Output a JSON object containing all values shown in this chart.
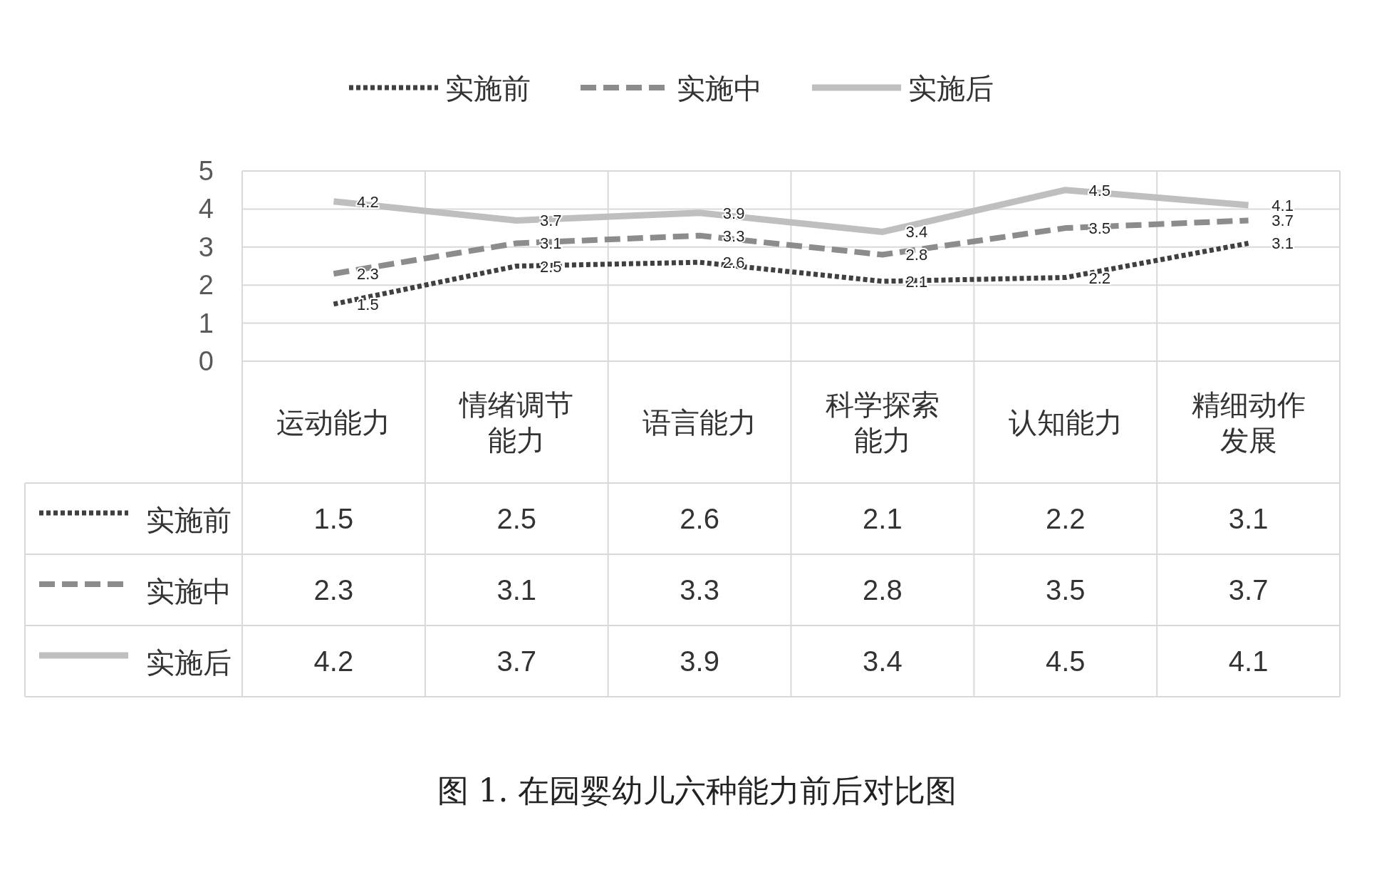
{
  "chart_data": {
    "type": "line",
    "title": "图 1. 在园婴幼儿六种能力前后对比图",
    "categories": [
      "运动能力",
      "情绪调节能力",
      "语言能力",
      "科学探索能力",
      "认知能力",
      "精细动作发展"
    ],
    "series": [
      {
        "name": "实施前",
        "color": "#404040",
        "line_style": "dotted",
        "values": [
          1.5,
          2.5,
          2.6,
          2.1,
          2.2,
          3.1
        ]
      },
      {
        "name": "实施中",
        "color": "#8c8c8c",
        "line_style": "dashed",
        "values": [
          2.3,
          3.1,
          3.3,
          2.8,
          3.5,
          3.7
        ]
      },
      {
        "name": "实施后",
        "color": "#bfbfbf",
        "line_style": "solid",
        "values": [
          4.2,
          3.7,
          3.9,
          3.4,
          4.5,
          4.1
        ]
      }
    ],
    "annotations": [
      {
        "text": "1.5",
        "x": "运动能力",
        "y": 1.5
      },
      {
        "text": "2.5",
        "x": "情绪调节能力",
        "y": 2.5
      },
      {
        "text": "2.6",
        "x": "语言能力",
        "y": 2.6
      },
      {
        "text": "2.1",
        "x": "科学探索能力",
        "y": 2.1
      },
      {
        "text": "2.2",
        "x": "认知能力",
        "y": 2.2
      },
      {
        "text": "3.1",
        "x": "精细动作发展",
        "y": 3.1
      },
      {
        "text": "2.3",
        "x": "运动能力",
        "y": 2.3
      },
      {
        "text": "3.1",
        "x": "情绪调节能力",
        "y": 3.1
      },
      {
        "text": "3.3",
        "x": "语言能力",
        "y": 3.3
      },
      {
        "text": "2.8",
        "x": "科学探索能力",
        "y": 2.8
      },
      {
        "text": "3.5",
        "x": "认知能力",
        "y": 3.5
      },
      {
        "text": "3.7",
        "x": "精细动作发展",
        "y": 3.7
      },
      {
        "text": "4.2",
        "x": "运动能力",
        "y": 4.2
      },
      {
        "text": "3.7",
        "x": "情绪调节能力",
        "y": 3.7
      },
      {
        "text": "3.9",
        "x": "语言能力",
        "y": 3.9
      },
      {
        "text": "3.4",
        "x": "科学探索能力",
        "y": 3.4
      },
      {
        "text": "4.5",
        "x": "认知能力",
        "y": 4.5
      },
      {
        "text": "4.1",
        "x": "精细动作发展",
        "y": 4.1
      }
    ],
    "ylim": [
      0,
      5
    ],
    "yticks": [
      0,
      1,
      2,
      3,
      4,
      5
    ],
    "grid": true,
    "legend": "top",
    "data_labels": true,
    "marker": "none"
  }
}
